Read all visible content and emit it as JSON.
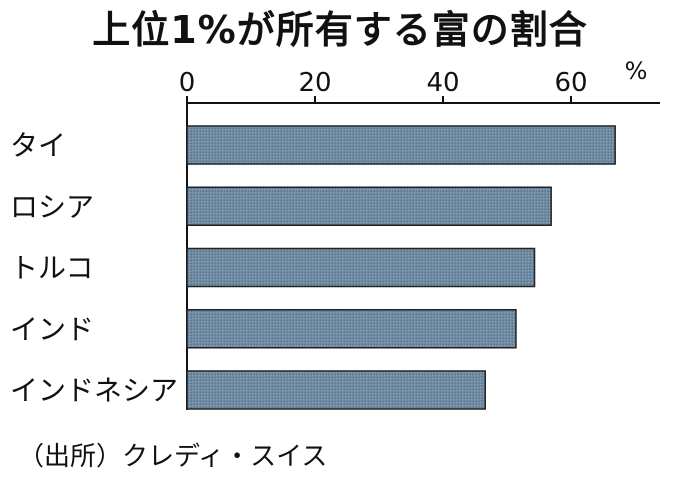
{
  "chart_data": {
    "type": "bar",
    "orientation": "horizontal",
    "title": "上位1%が所有する富の割合",
    "categories": [
      "タイ",
      "ロシア",
      "トルコ",
      "インド",
      "インドネシア"
    ],
    "values": [
      66.9,
      56.9,
      54.3,
      51.4,
      46.6
    ],
    "x_ticks": [
      0,
      20,
      40,
      60
    ],
    "x_unit": "%",
    "xlim": [
      0,
      72
    ],
    "grid": false,
    "tick_position": "top",
    "bar_color": "#6f8aa3",
    "bar_edge_color": "#222222",
    "source": "（出所）クレディ・スイス"
  }
}
